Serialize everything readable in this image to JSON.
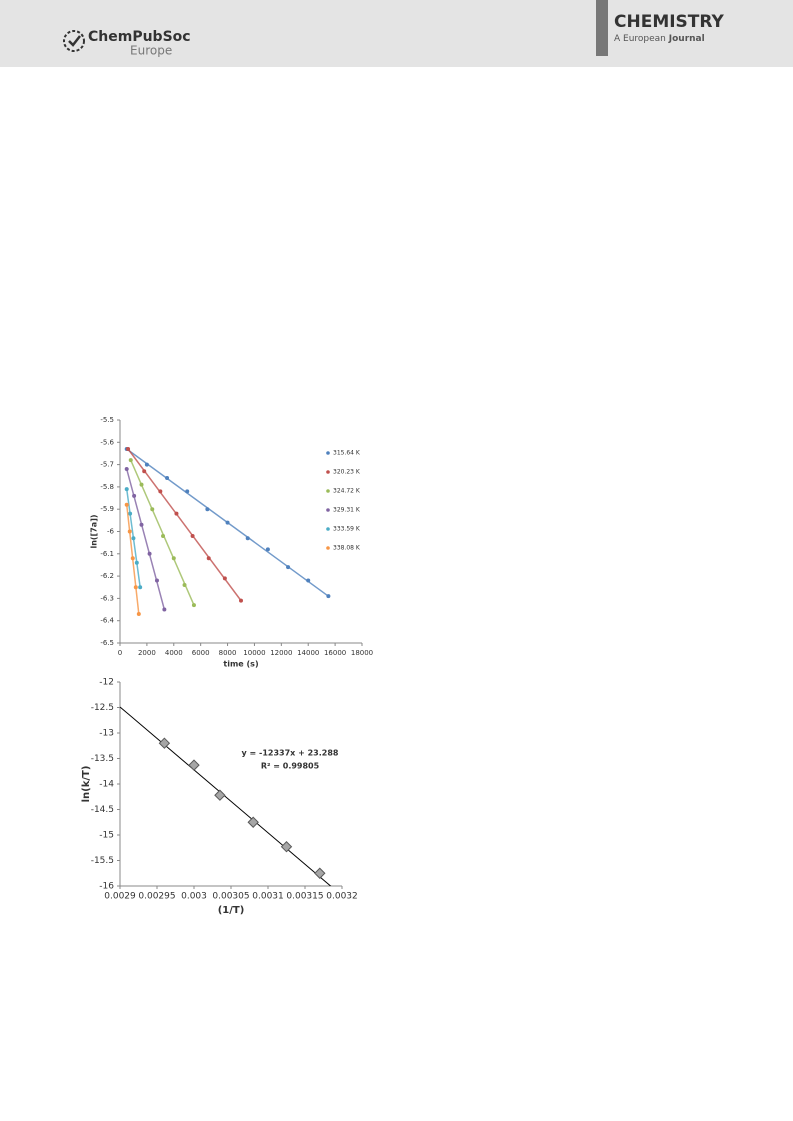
{
  "header": {
    "logo": "ChemPubSoc",
    "logo_sub": "Europe",
    "journal": "CHEMISTRY",
    "journal_sub": "A European",
    "journal_sub_bold": "Journal"
  },
  "chart_data": [
    {
      "type": "scatter",
      "xlabel": "time (s)",
      "ylabel": "ln([7a])",
      "legend": "right",
      "fit_lines": true,
      "xlim": [
        0,
        18000
      ],
      "xticks": [
        0,
        2000,
        4000,
        6000,
        8000,
        10000,
        12000,
        14000,
        16000,
        18000
      ],
      "ylim": [
        -6.5,
        -5.5
      ],
      "yticks": [
        -5.5,
        -5.6,
        -5.7,
        -5.8,
        -5.9,
        -6,
        -6.1,
        -6.2,
        -6.3,
        -6.4,
        -6.5
      ],
      "series": [
        {
          "name": "315.64 K",
          "color": "#4f81bd",
          "x": [
            500,
            2000,
            3500,
            5000,
            6500,
            8000,
            9500,
            11000,
            12500,
            14000,
            15500
          ],
          "values": [
            -5.63,
            -5.7,
            -5.76,
            -5.82,
            -5.9,
            -5.96,
            -6.03,
            -6.08,
            -6.16,
            -6.22,
            -6.29
          ]
        },
        {
          "name": "320.23 K",
          "color": "#c0504d",
          "x": [
            600,
            1800,
            3000,
            4200,
            5400,
            6600,
            7800,
            9000
          ],
          "values": [
            -5.63,
            -5.73,
            -5.82,
            -5.92,
            -6.02,
            -6.12,
            -6.21,
            -6.31
          ]
        },
        {
          "name": "324.72 K",
          "color": "#9bbb59",
          "x": [
            800,
            1600,
            2400,
            3200,
            4000,
            4800,
            5500
          ],
          "values": [
            -5.68,
            -5.79,
            -5.9,
            -6.02,
            -6.12,
            -6.24,
            -6.33
          ]
        },
        {
          "name": "329.31 K",
          "color": "#8064a2",
          "x": [
            500,
            1050,
            1600,
            2200,
            2750,
            3300
          ],
          "values": [
            -5.72,
            -5.84,
            -5.97,
            -6.1,
            -6.22,
            -6.35
          ]
        },
        {
          "name": "333.59 K",
          "color": "#4bacc6",
          "x": [
            500,
            750,
            1000,
            1250,
            1500
          ],
          "values": [
            -5.81,
            -5.92,
            -6.03,
            -6.14,
            -6.25
          ]
        },
        {
          "name": "338.08 K",
          "color": "#f79646",
          "x": [
            500,
            725,
            950,
            1175,
            1400
          ],
          "values": [
            -5.88,
            -6.0,
            -6.12,
            -6.25,
            -6.37
          ]
        }
      ]
    },
    {
      "type": "scatter",
      "xlabel": "(1/T)",
      "ylabel": "ln(k/T)",
      "xlim": [
        0.0029,
        0.0032
      ],
      "xticks": [
        0.0029,
        0.00295,
        0.003,
        0.00305,
        0.0031,
        0.00315,
        0.0032
      ],
      "ylim": [
        -16,
        -12
      ],
      "yticks": [
        -12,
        -12.5,
        -13,
        -13.5,
        -14,
        -14.5,
        -15,
        -15.5,
        -16
      ],
      "trendline": {
        "slope": -12337,
        "intercept": 23.288,
        "color": "#000000"
      },
      "annotations": [
        "y = -12337x + 23.288",
        "R² = 0.99805"
      ],
      "series": [
        {
          "name": null,
          "color": "#a6a6a6",
          "x": [
            0.00296,
            0.003,
            0.003035,
            0.00308,
            0.003125,
            0.00317
          ],
          "values": [
            -13.2,
            -13.63,
            -14.22,
            -14.75,
            -15.23,
            -15.75
          ]
        }
      ]
    }
  ]
}
